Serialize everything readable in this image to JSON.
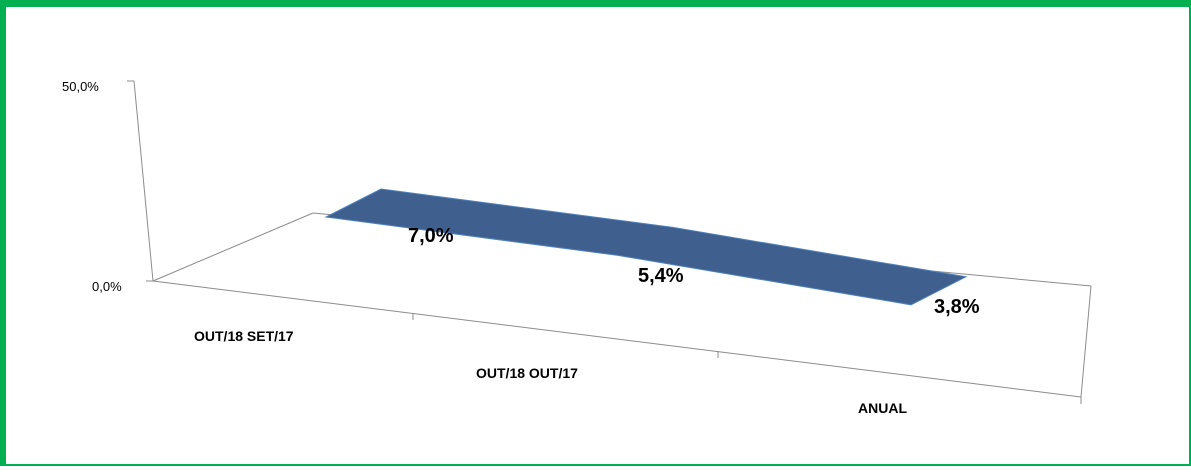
{
  "chart_data": {
    "type": "area",
    "categories": [
      "OUT/18 SET/17",
      "OUT/18 OUT/17",
      "ANUAL"
    ],
    "series": [
      {
        "values": [
          7.0,
          5.4,
          3.8
        ]
      }
    ],
    "data_labels": [
      "7,0%",
      "5,4%",
      "3,8%"
    ],
    "y_ticks": [
      "0,0%",
      "50,0%"
    ],
    "ylim": [
      0,
      50
    ],
    "series_color": "#3f5f8f",
    "series_edge_color": "#4f81bd",
    "grid": false,
    "legend": "none",
    "style": "3d-perspective",
    "border_color": "#00b050"
  }
}
